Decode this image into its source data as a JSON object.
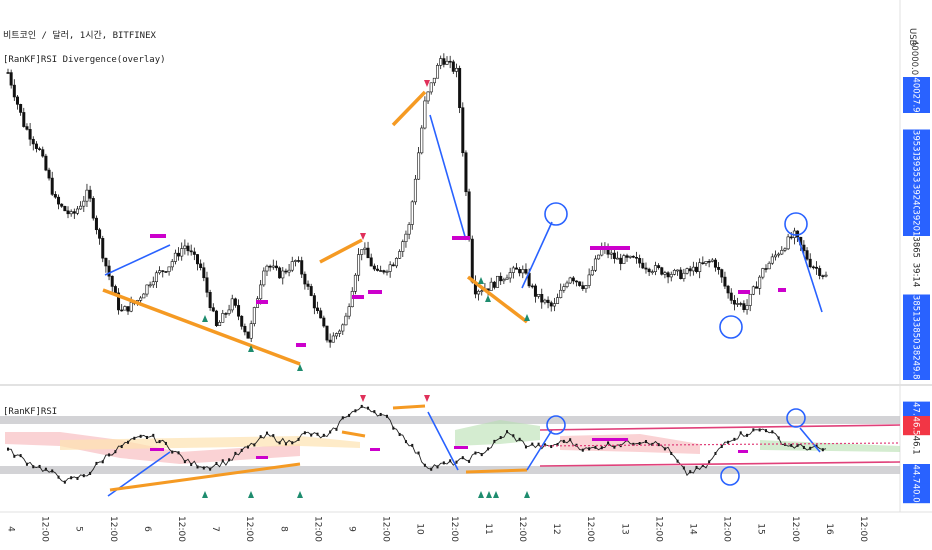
{
  "header": {
    "symbol_line": "비트코인 / 달러, 1시간, BITFINEX",
    "indicator_line": "[RanKF]RSI Divergence(overlay)",
    "currency": "USD",
    "top_price": "40000.0"
  },
  "rsi_pane": {
    "title": "[RanKF]RSI"
  },
  "colors": {
    "bull_div": "#f59a23",
    "bear_div": "#2962ff",
    "magenta": "#cc00cc",
    "channel": "#e0407a",
    "up_arrow": "#1e8c6e",
    "down_arrow": "#e0305a",
    "price_tag_blue": "#2962ff",
    "price_tag_red": "#f23645",
    "gray_band": "#c8c8cc"
  },
  "chart_data": [
    {
      "type": "candlestick",
      "title": "",
      "x_ticks": [
        "4",
        "12:00",
        "5",
        "12:00",
        "6",
        "12:00",
        "7",
        "12:00",
        "8",
        "12:00",
        "9",
        "12:00",
        "10",
        "12:00",
        "11",
        "12:00",
        "12",
        "12:00",
        "13",
        "12:00",
        "14",
        "12:00",
        "15",
        "12:00",
        "16",
        "12:00"
      ],
      "ylim": [
        37900,
        40300
      ],
      "close_path": [
        39950,
        39600,
        39420,
        39080,
        38990,
        39150,
        38700,
        38350,
        38420,
        38580,
        38660,
        38800,
        38650,
        38250,
        38420,
        38180,
        38680,
        38600,
        38700,
        38430,
        38150,
        38280,
        38800,
        38600,
        38680,
        38920,
        39750,
        40050,
        39950,
        38500,
        38520,
        38600,
        38640,
        38450,
        38380,
        38600,
        38520,
        38780,
        38700,
        38700,
        38650,
        38620,
        38600,
        38650,
        38700,
        38450,
        38380,
        38620,
        38750,
        38870,
        38680,
        38590
      ],
      "price_tags": [
        {
          "label": "40027.9",
          "color": "#2962ff",
          "price": 39800
        },
        {
          "label": "39531.7",
          "color": "#2962ff",
          "price": 39450
        },
        {
          "label": "39353.7",
          "color": "#2962ff",
          "price": 39280
        },
        {
          "label": "39240.3",
          "color": "#2962ff",
          "price": 39090
        },
        {
          "label": "39201.8",
          "color": "#2962ff",
          "price": 38920
        },
        {
          "label": "38653.0",
          "color": "#ffffff",
          "price": 38740
        },
        {
          "label": "39:14",
          "color": "#ffffff",
          "price": 38600
        },
        {
          "label": "38513.1",
          "color": "#2962ff",
          "price": 38350
        },
        {
          "label": "38500.7",
          "color": "#2962ff",
          "price": 38170
        },
        {
          "label": "38249.8",
          "color": "#2962ff",
          "price": 38020
        }
      ]
    },
    {
      "type": "line",
      "title": "",
      "ylim": [
        43.5,
        48.5
      ],
      "rsi_path": [
        46.0,
        45.5,
        45.1,
        44.7,
        45.0,
        45.8,
        46.3,
        46.6,
        46.2,
        45.5,
        45.3,
        45.5,
        46.1,
        46.6,
        46.3,
        46.7,
        46.5,
        47.5,
        47.8,
        47.3,
        46.4,
        45.3,
        45.4,
        45.6,
        46.0,
        46.7,
        46.2,
        46.1,
        46.4,
        46.0,
        46.2,
        46.3,
        46.4,
        46.1,
        45.0,
        45.3,
        46.4,
        46.7,
        46.9,
        46.2,
        46.1,
        46.0
      ],
      "price_tags": [
        {
          "label": "47.4",
          "color": "#2962ff",
          "value": 47.6
        },
        {
          "label": "46.5",
          "color": "#f23645",
          "value": 47.0
        },
        {
          "label": "46.1",
          "color": "#ffffff",
          "value": 46.2
        },
        {
          "label": "44.7",
          "color": "#2962ff",
          "value": 45.0
        },
        {
          "label": "40.0",
          "color": "#2962ff",
          "value": 44.2
        }
      ]
    }
  ]
}
